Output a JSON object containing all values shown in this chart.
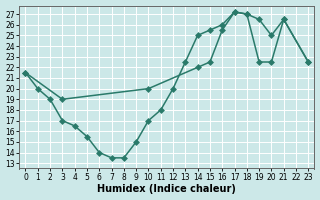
{
  "xlabel": "Humidex (Indice chaleur)",
  "bg_color": "#cce8e8",
  "line_color": "#2a7a6a",
  "grid_color": "#ffffff",
  "xlim": [
    -0.5,
    23.5
  ],
  "ylim": [
    12.5,
    27.8
  ],
  "yticks": [
    13,
    14,
    15,
    16,
    17,
    18,
    19,
    20,
    21,
    22,
    23,
    24,
    25,
    26,
    27
  ],
  "xticks": [
    0,
    1,
    2,
    3,
    4,
    5,
    6,
    7,
    8,
    9,
    10,
    11,
    12,
    13,
    14,
    15,
    16,
    17,
    18,
    19,
    20,
    21,
    22,
    23
  ],
  "curve1_x": [
    0,
    1,
    2,
    3,
    4,
    5,
    6,
    7,
    8,
    9,
    10,
    11,
    12,
    13,
    14,
    15,
    16,
    17,
    18,
    19,
    20,
    21,
    23
  ],
  "curve1_y": [
    21.5,
    20.0,
    19.0,
    17.0,
    16.5,
    15.5,
    14.0,
    13.5,
    13.5,
    15.0,
    17.0,
    18.0,
    20.0,
    22.5,
    25.0,
    25.5,
    26.0,
    27.2,
    27.0,
    26.5,
    25.0,
    26.5,
    22.5
  ],
  "curve2_x": [
    0,
    3,
    10,
    14,
    15,
    16,
    17,
    18,
    19,
    20,
    21,
    23
  ],
  "curve2_y": [
    21.5,
    19.0,
    20.0,
    22.0,
    22.5,
    25.5,
    27.2,
    27.0,
    22.5,
    22.5,
    26.5,
    22.5
  ],
  "marker": "D",
  "markersize": 3.0,
  "linewidth": 1.1,
  "tick_fontsize": 5.5,
  "xlabel_fontsize": 7.0
}
